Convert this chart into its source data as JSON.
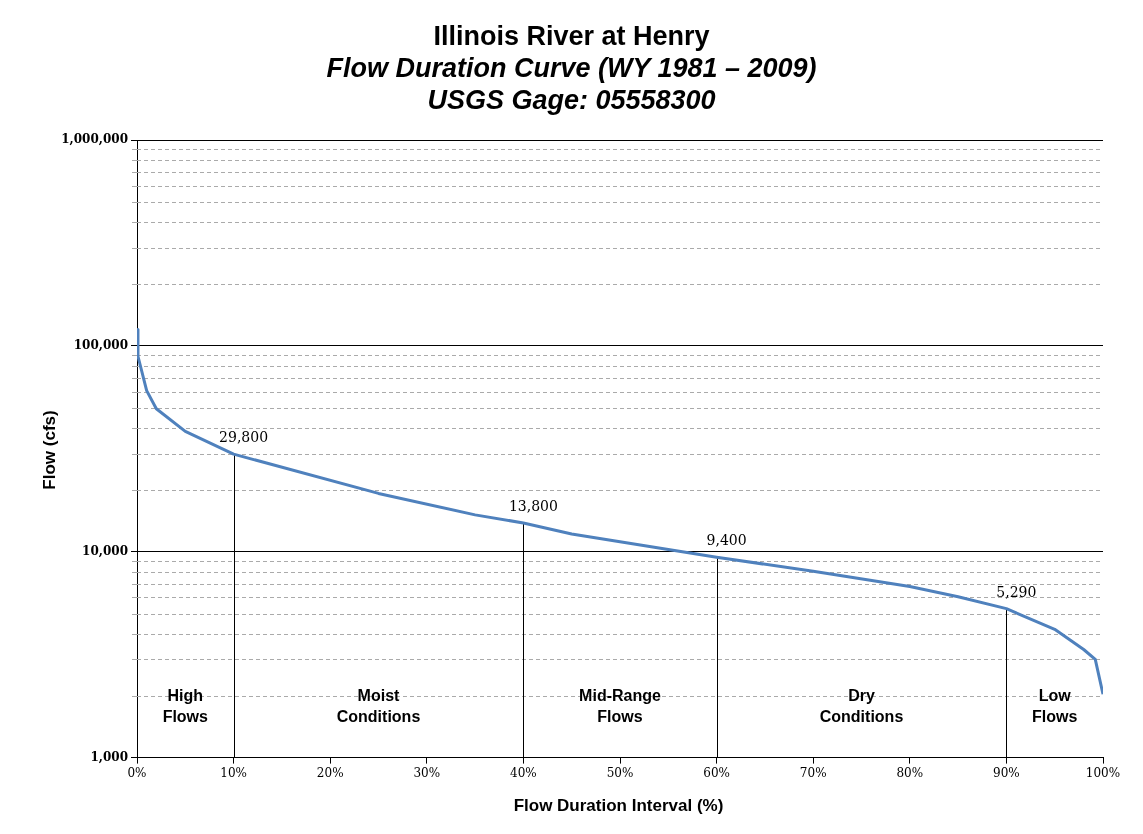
{
  "chart_data": {
    "type": "line",
    "title": "Illinois River at Henry",
    "subtitle": "Flow Duration Curve (WY 1981 – 2009)\nUSGS Gage:  05558300",
    "xlabel": "Flow Duration Interval (%)",
    "ylabel": "Flow (cfs)",
    "series": [
      {
        "color": "#4f81bd",
        "x": [
          0,
          0.1,
          1,
          2,
          5,
          10,
          25,
          35,
          40,
          45,
          60,
          70,
          80,
          85,
          90,
          95,
          98,
          99.2,
          100
        ],
        "values": [
          120000,
          89000,
          60600,
          49500,
          38400,
          29800,
          19200,
          15100,
          13800,
          12200,
          9400,
          8040,
          6780,
          6040,
          5290,
          4200,
          3350,
          3000,
          2030
        ]
      }
    ],
    "xlim": [
      0,
      100
    ],
    "xticks": [
      {
        "value": 0,
        "label": "0%"
      },
      {
        "value": 10,
        "label": "10%"
      },
      {
        "value": 20,
        "label": "20%"
      },
      {
        "value": 30,
        "label": "30%"
      },
      {
        "value": 40,
        "label": "40%"
      },
      {
        "value": 50,
        "label": "50%"
      },
      {
        "value": 60,
        "label": "60%"
      },
      {
        "value": 70,
        "label": "70%"
      },
      {
        "value": 80,
        "label": "80%"
      },
      {
        "value": 90,
        "label": "90%"
      },
      {
        "value": 100,
        "label": "100%"
      }
    ],
    "ylim": [
      1000,
      1000000
    ],
    "yticks": [
      {
        "value": 1000,
        "label": "1,000"
      },
      {
        "value": 10000,
        "label": "10,000"
      },
      {
        "value": 100000,
        "label": "100,000"
      },
      {
        "value": 1000000,
        "label": "1,000,000"
      }
    ],
    "log": "y",
    "grid": "y",
    "legend": false,
    "marker": "none",
    "line_style": "solid",
    "ref_lines": [
      {
        "axis": "x",
        "value": 10,
        "color": "#000000"
      },
      {
        "axis": "x",
        "value": 40,
        "color": "#000000"
      },
      {
        "axis": "x",
        "value": 60,
        "color": "#000000"
      },
      {
        "axis": "x",
        "value": 90,
        "color": "#000000"
      }
    ],
    "annotations": [
      "High Flows",
      "Moist Conditions",
      "Mid-Range Flows",
      "Dry Conditions",
      "Low Flows",
      {
        "text": "29,800",
        "x": 10,
        "y": 29800
      },
      {
        "text": "13,800",
        "x": 40,
        "y": 13800
      },
      {
        "text": "9,400",
        "x": 60,
        "y": 9400
      },
      {
        "text": "5,290",
        "x": 90,
        "y": 5290
      }
    ]
  }
}
